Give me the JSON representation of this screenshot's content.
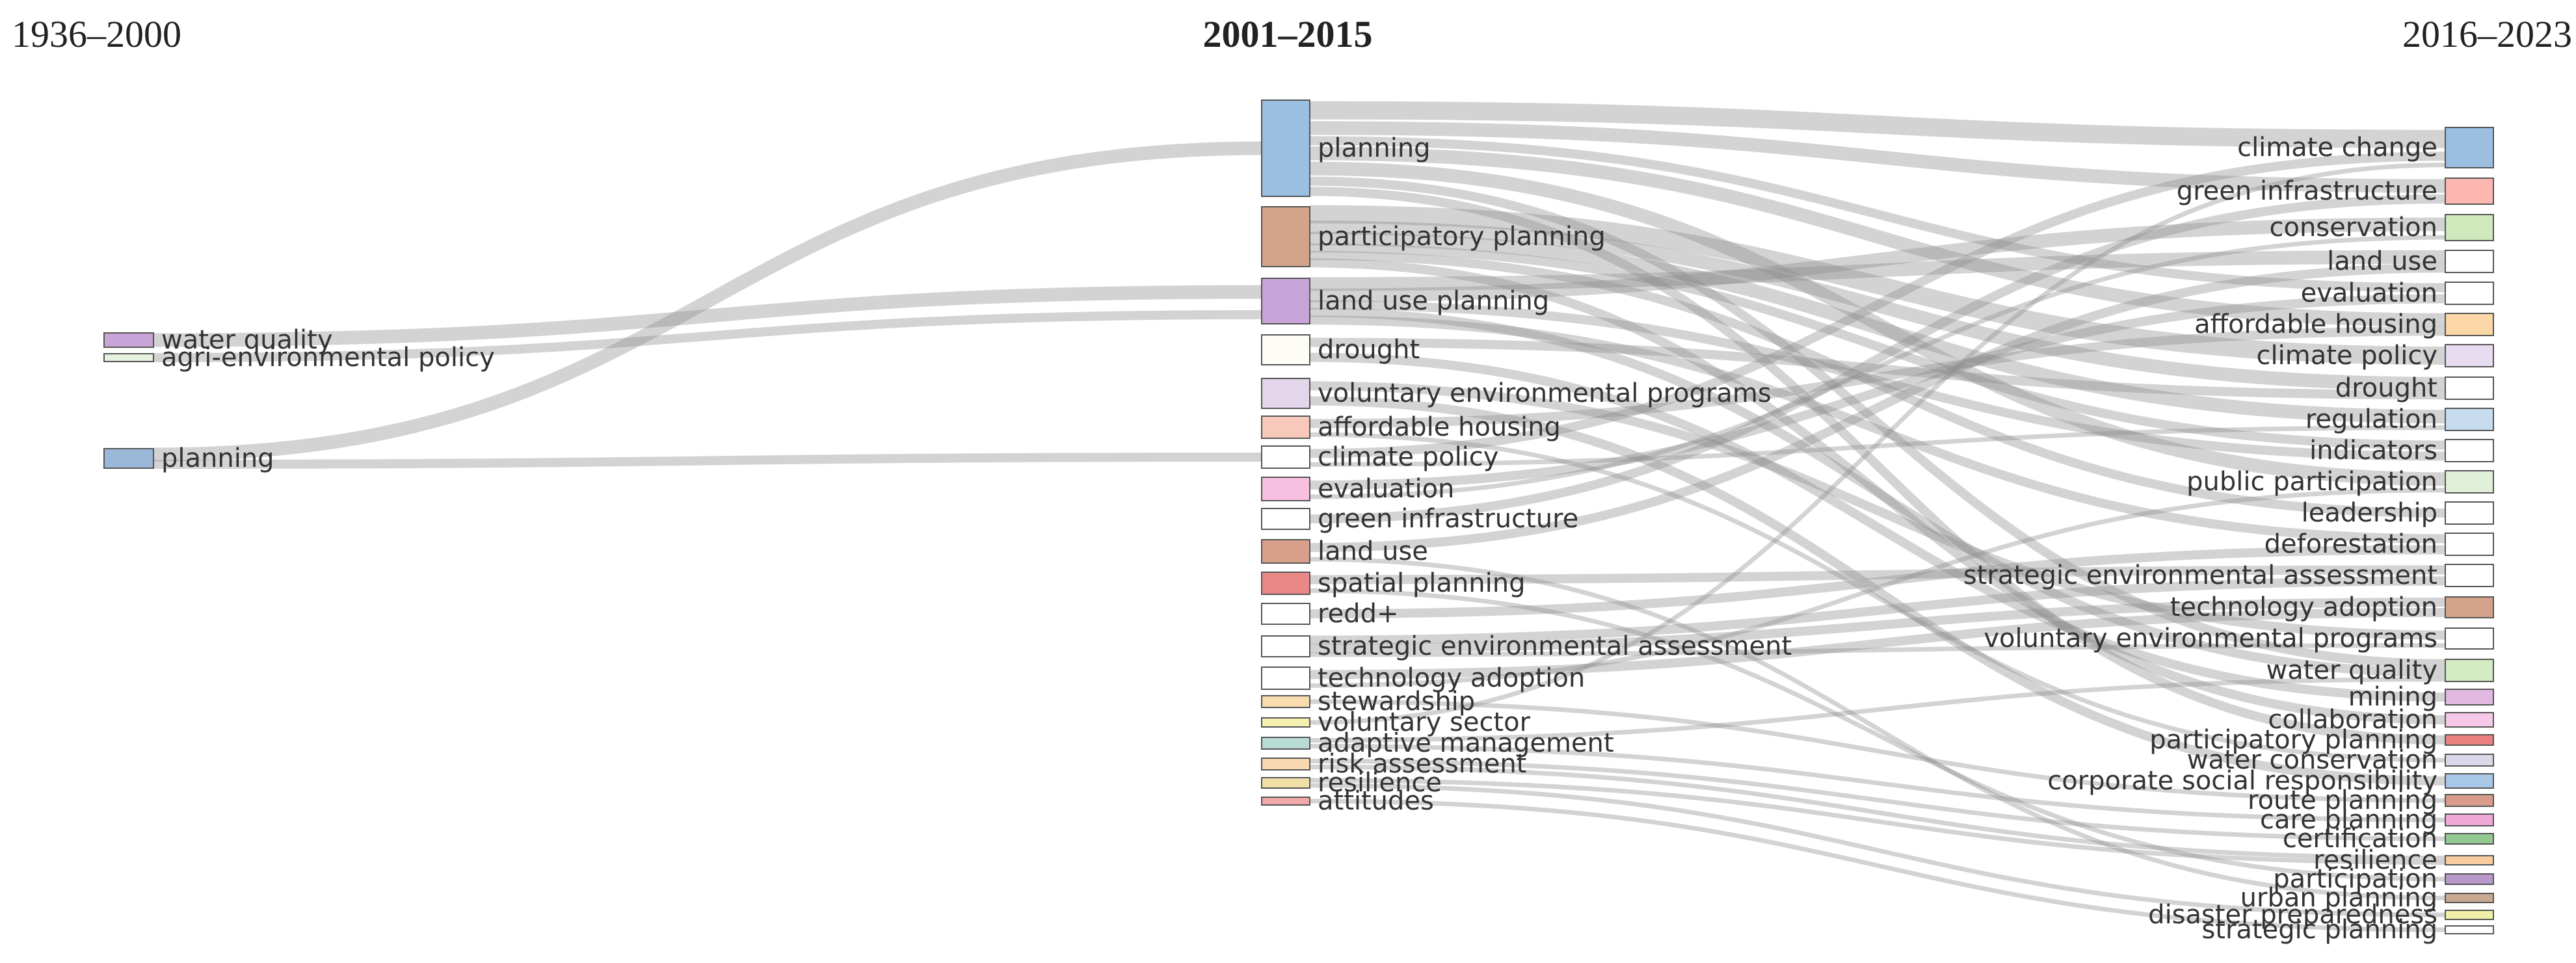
{
  "periods": [
    {
      "label": "1936–2000"
    },
    {
      "label": "2001–2015"
    },
    {
      "label": "2016–2023"
    }
  ],
  "left_nodes": [
    {
      "id": "L_water_quality",
      "label": "water quality",
      "color": "#c8a4d8"
    },
    {
      "id": "L_agri",
      "label": "agri-environmental policy",
      "color": "#e6f2df"
    },
    {
      "id": "L_planning",
      "label": "planning",
      "color": "#9bb8d8"
    }
  ],
  "middle_nodes": [
    {
      "id": "M_planning",
      "label": "planning",
      "color": "#9bbfe0"
    },
    {
      "id": "M_participatory",
      "label": "participatory planning",
      "color": "#d4a48a"
    },
    {
      "id": "M_land_use_planning",
      "label": "land use planning",
      "color": "#c8a4d8"
    },
    {
      "id": "M_drought",
      "label": "drought",
      "color": "#fdfdf6"
    },
    {
      "id": "M_voluntary",
      "label": "voluntary environmental programs",
      "color": "#e3d6ea"
    },
    {
      "id": "M_affordable",
      "label": "affordable housing",
      "color": "#f8c8ba"
    },
    {
      "id": "M_climate_policy",
      "label": "climate policy",
      "color": "#ffffff"
    },
    {
      "id": "M_evaluation",
      "label": "evaluation",
      "color": "#f8c0e0"
    },
    {
      "id": "M_green",
      "label": "green infrastructure",
      "color": "#ffffff"
    },
    {
      "id": "M_land_use",
      "label": "land use",
      "color": "#d8a08a"
    },
    {
      "id": "M_spatial",
      "label": "spatial planning",
      "color": "#ea8888"
    },
    {
      "id": "M_redd",
      "label": "redd+",
      "color": "#ffffff"
    },
    {
      "id": "M_sea",
      "label": "strategic environmental assessment",
      "color": "#ffffff"
    },
    {
      "id": "M_tech",
      "label": "technology adoption",
      "color": "#ffffff"
    },
    {
      "id": "M_stewardship",
      "label": "stewardship",
      "color": "#f8dcae"
    },
    {
      "id": "M_voluntary_sector",
      "label": "voluntary sector",
      "color": "#f4f0b0"
    },
    {
      "id": "M_adaptive",
      "label": "adaptive management",
      "color": "#b8dcd4"
    },
    {
      "id": "M_risk",
      "label": "risk assessment",
      "color": "#f8d8b0"
    },
    {
      "id": "M_resilience",
      "label": "resilience",
      "color": "#f0e0a8"
    },
    {
      "id": "M_attitudes",
      "label": "attitudes",
      "color": "#f0a8a8"
    }
  ],
  "right_nodes": [
    {
      "id": "R_climate_change",
      "label": "climate change",
      "color": "#9bbfe0"
    },
    {
      "id": "R_green",
      "label": "green infrastructure",
      "color": "#fcb8b0"
    },
    {
      "id": "R_conservation",
      "label": "conservation",
      "color": "#cfe8bc"
    },
    {
      "id": "R_land_use",
      "label": "land use",
      "color": "#ffffff"
    },
    {
      "id": "R_evaluation",
      "label": "evaluation",
      "color": "#ffffff"
    },
    {
      "id": "R_affordable",
      "label": "affordable housing",
      "color": "#fcd8a8"
    },
    {
      "id": "R_climate_policy",
      "label": "climate policy",
      "color": "#e8dcf0"
    },
    {
      "id": "R_drought",
      "label": "drought",
      "color": "#ffffff"
    },
    {
      "id": "R_regulation",
      "label": "regulation",
      "color": "#c8dcf0"
    },
    {
      "id": "R_indicators",
      "label": "indicators",
      "color": "#ffffff"
    },
    {
      "id": "R_public",
      "label": "public participation",
      "color": "#e0f0d8"
    },
    {
      "id": "R_leadership",
      "label": "leadership",
      "color": "#ffffff"
    },
    {
      "id": "R_deforestation",
      "label": "deforestation",
      "color": "#ffffff"
    },
    {
      "id": "R_sea",
      "label": "strategic environmental assessment",
      "color": "#ffffff"
    },
    {
      "id": "R_tech",
      "label": "technology adoption",
      "color": "#d4a48a"
    },
    {
      "id": "R_voluntary",
      "label": "voluntary environmental programs",
      "color": "#ffffff"
    },
    {
      "id": "R_water_quality",
      "label": "water quality",
      "color": "#d4ecc4"
    },
    {
      "id": "R_mining",
      "label": "mining",
      "color": "#e0b8e0"
    },
    {
      "id": "R_collaboration",
      "label": "collaboration",
      "color": "#f8c8e8"
    },
    {
      "id": "R_participatory",
      "label": "participatory planning",
      "color": "#ea8080"
    },
    {
      "id": "R_water_conservation",
      "label": "water conservation",
      "color": "#d8d8e8"
    },
    {
      "id": "R_csr",
      "label": "corporate social responsibility",
      "color": "#a8c8e8"
    },
    {
      "id": "R_route",
      "label": "route planning",
      "color": "#d89c8c"
    },
    {
      "id": "R_care",
      "label": "care planning",
      "color": "#f0a8d8"
    },
    {
      "id": "R_certification",
      "label": "certification",
      "color": "#90c890"
    },
    {
      "id": "R_resilience",
      "label": "resilience",
      "color": "#f8cca0"
    },
    {
      "id": "R_participation",
      "label": "participation",
      "color": "#b898c8"
    },
    {
      "id": "R_urban",
      "label": "urban planning",
      "color": "#c8a890"
    },
    {
      "id": "R_disaster",
      "label": "disaster preparedness",
      "color": "#f0f0a8"
    },
    {
      "id": "R_strategic_planning",
      "label": "strategic planning",
      "color": "#ffffff"
    }
  ],
  "links": [
    {
      "source": "L_planning",
      "target": "M_planning",
      "value": 3
    },
    {
      "source": "L_planning",
      "target": "M_climate_policy",
      "value": 2
    },
    {
      "source": "L_water_quality",
      "target": "M_land_use_planning",
      "value": 3
    },
    {
      "source": "L_agri",
      "target": "M_land_use_planning",
      "value": 2
    },
    {
      "source": "M_planning",
      "target": "R_climate_change",
      "value": 4
    },
    {
      "source": "M_planning",
      "target": "R_green",
      "value": 3
    },
    {
      "source": "M_planning",
      "target": "R_evaluation",
      "value": 2
    },
    {
      "source": "M_planning",
      "target": "R_affordable",
      "value": 3
    },
    {
      "source": "M_planning",
      "target": "R_public",
      "value": 3
    },
    {
      "source": "M_planning",
      "target": "R_water_quality",
      "value": 2
    },
    {
      "source": "M_planning",
      "target": "R_participatory",
      "value": 2
    },
    {
      "source": "M_participatory",
      "target": "R_climate_policy",
      "value": 4
    },
    {
      "source": "M_participatory",
      "target": "R_drought",
      "value": 3
    },
    {
      "source": "M_participatory",
      "target": "R_regulation",
      "value": 3
    },
    {
      "source": "M_participatory",
      "target": "R_indicators",
      "value": 2
    },
    {
      "source": "M_participatory",
      "target": "R_leadership",
      "value": 2
    },
    {
      "source": "M_participatory",
      "target": "R_collaboration",
      "value": 2
    },
    {
      "source": "M_land_use_planning",
      "target": "R_land_use",
      "value": 3
    },
    {
      "source": "M_land_use_planning",
      "target": "R_conservation",
      "value": 3
    },
    {
      "source": "M_land_use_planning",
      "target": "R_indicators",
      "value": 2
    },
    {
      "source": "M_land_use_planning",
      "target": "R_water_quality",
      "value": 2
    },
    {
      "source": "M_land_use_planning",
      "target": "R_deforestation",
      "value": 2
    },
    {
      "source": "M_drought",
      "target": "R_drought",
      "value": 2
    },
    {
      "source": "M_drought",
      "target": "R_mining",
      "value": 2
    },
    {
      "source": "M_voluntary",
      "target": "R_voluntary",
      "value": 2
    },
    {
      "source": "M_voluntary",
      "target": "R_csr",
      "value": 2
    },
    {
      "source": "M_affordable",
      "target": "R_affordable",
      "value": 2
    },
    {
      "source": "M_affordable",
      "target": "R_water_conservation",
      "value": 1
    },
    {
      "source": "M_climate_policy",
      "target": "R_climate_change",
      "value": 2
    },
    {
      "source": "M_climate_policy",
      "target": "R_regulation",
      "value": 1
    },
    {
      "source": "M_evaluation",
      "target": "R_evaluation",
      "value": 2
    },
    {
      "source": "M_evaluation",
      "target": "R_conservation",
      "value": 1
    },
    {
      "source": "M_green",
      "target": "R_green",
      "value": 2
    },
    {
      "source": "M_land_use",
      "target": "R_land_use",
      "value": 2
    },
    {
      "source": "M_land_use",
      "target": "R_urban",
      "value": 1
    },
    {
      "source": "M_spatial",
      "target": "R_sea",
      "value": 2
    },
    {
      "source": "M_spatial",
      "target": "R_participation",
      "value": 1
    },
    {
      "source": "M_redd",
      "target": "R_deforestation",
      "value": 2
    },
    {
      "source": "M_sea",
      "target": "R_sea",
      "value": 2
    },
    {
      "source": "M_sea",
      "target": "R_tech",
      "value": 2
    },
    {
      "source": "M_sea",
      "target": "R_voluntary",
      "value": 1
    },
    {
      "source": "M_tech",
      "target": "R_tech",
      "value": 2
    },
    {
      "source": "M_tech",
      "target": "R_public",
      "value": 1
    },
    {
      "source": "M_stewardship",
      "target": "R_route",
      "value": 1
    },
    {
      "source": "M_voluntary_sector",
      "target": "R_climate_change",
      "value": 1
    },
    {
      "source": "M_adaptive",
      "target": "R_water_quality",
      "value": 1
    },
    {
      "source": "M_adaptive",
      "target": "R_care",
      "value": 1
    },
    {
      "source": "M_risk",
      "target": "R_certification",
      "value": 1
    },
    {
      "source": "M_risk",
      "target": "R_resilience",
      "value": 1
    },
    {
      "source": "M_resilience",
      "target": "R_resilience",
      "value": 1
    },
    {
      "source": "M_resilience",
      "target": "R_disaster",
      "value": 1
    },
    {
      "source": "M_attitudes",
      "target": "R_strategic_planning",
      "value": 1
    }
  ]
}
